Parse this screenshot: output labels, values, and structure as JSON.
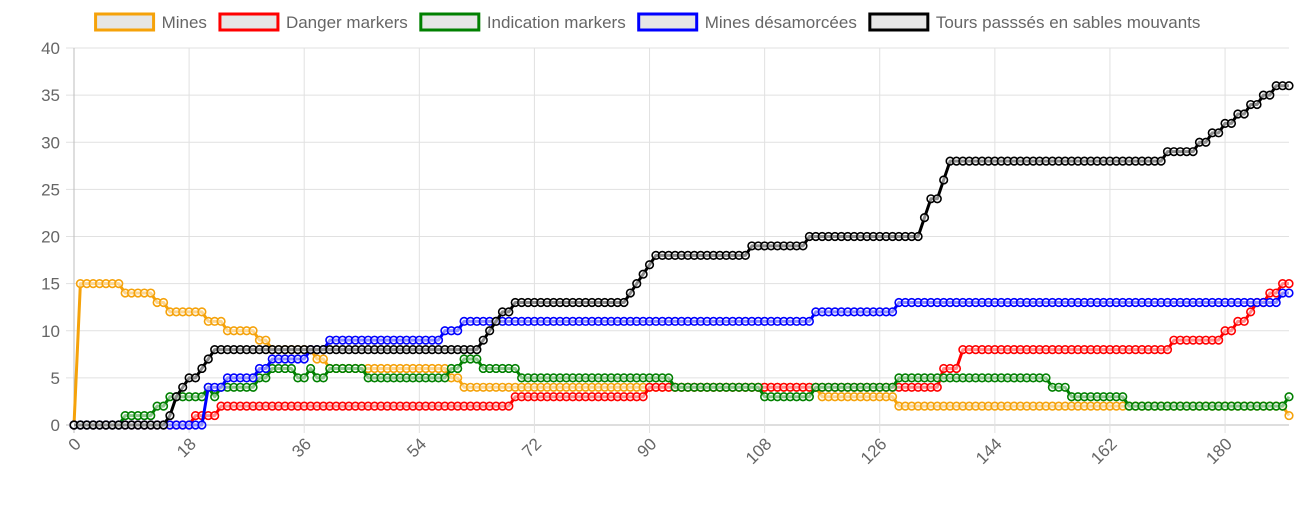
{
  "chart_data": {
    "type": "line",
    "xlabel": "",
    "ylabel": "",
    "x_ticks": [
      0,
      18,
      36,
      54,
      72,
      90,
      108,
      126,
      144,
      162,
      180
    ],
    "y_ticks": [
      0,
      5,
      10,
      15,
      20,
      25,
      30,
      35,
      40
    ],
    "xlim": [
      0,
      190
    ],
    "ylim": [
      0,
      40
    ],
    "grid": true,
    "legend_position": "top",
    "series": [
      {
        "name": "Mines",
        "color": "#f5a20a",
        "steps": [
          [
            0,
            0
          ],
          [
            1,
            15
          ],
          [
            8,
            14
          ],
          [
            13,
            13
          ],
          [
            15,
            12
          ],
          [
            21,
            11
          ],
          [
            24,
            10
          ],
          [
            29,
            9
          ],
          [
            31,
            8
          ],
          [
            38,
            7
          ],
          [
            40,
            6
          ],
          [
            59,
            5
          ],
          [
            61,
            4
          ],
          [
            117,
            3
          ],
          [
            129,
            2
          ],
          [
            190,
            1
          ]
        ]
      },
      {
        "name": "Danger markers",
        "color": "#ff0000",
        "steps": [
          [
            0,
            0
          ],
          [
            19,
            1
          ],
          [
            23,
            2
          ],
          [
            69,
            3
          ],
          [
            90,
            4
          ],
          [
            136,
            6
          ],
          [
            139,
            8
          ],
          [
            172,
            9
          ],
          [
            180,
            10
          ],
          [
            182,
            11
          ],
          [
            184,
            12
          ],
          [
            185,
            13
          ],
          [
            187,
            14
          ],
          [
            189,
            15
          ]
        ]
      },
      {
        "name": "Indication markers",
        "color": "#008000",
        "steps": [
          [
            0,
            0
          ],
          [
            8,
            1
          ],
          [
            13,
            2
          ],
          [
            15,
            3
          ],
          [
            21,
            4
          ],
          [
            22,
            3
          ],
          [
            23,
            4
          ],
          [
            29,
            5
          ],
          [
            31,
            6
          ],
          [
            35,
            5
          ],
          [
            37,
            6
          ],
          [
            38,
            5
          ],
          [
            40,
            6
          ],
          [
            46,
            5
          ],
          [
            59,
            6
          ],
          [
            61,
            7
          ],
          [
            64,
            6
          ],
          [
            70,
            5
          ],
          [
            94,
            4
          ],
          [
            108,
            3
          ],
          [
            116,
            4
          ],
          [
            129,
            5
          ],
          [
            153,
            4
          ],
          [
            156,
            3
          ],
          [
            165,
            2
          ],
          [
            190,
            3
          ]
        ]
      },
      {
        "name": "Mines désamorcées",
        "color": "#0000ff",
        "steps": [
          [
            0,
            0
          ],
          [
            21,
            4
          ],
          [
            24,
            5
          ],
          [
            29,
            6
          ],
          [
            31,
            7
          ],
          [
            37,
            8
          ],
          [
            40,
            9
          ],
          [
            58,
            10
          ],
          [
            61,
            11
          ],
          [
            116,
            12
          ],
          [
            129,
            13
          ],
          [
            189,
            14
          ]
        ]
      },
      {
        "name": "Tours passsés en sables mouvants",
        "color": "#000000",
        "steps": [
          [
            0,
            0
          ],
          [
            15,
            1
          ],
          [
            16,
            3
          ],
          [
            17,
            4
          ],
          [
            18,
            5
          ],
          [
            20,
            6
          ],
          [
            21,
            7
          ],
          [
            22,
            8
          ],
          [
            37,
            8
          ],
          [
            64,
            9
          ],
          [
            65,
            10
          ],
          [
            66,
            11
          ],
          [
            67,
            12
          ],
          [
            69,
            13
          ],
          [
            87,
            14
          ],
          [
            88,
            15
          ],
          [
            89,
            16
          ],
          [
            90,
            17
          ],
          [
            91,
            18
          ],
          [
            106,
            19
          ],
          [
            115,
            20
          ],
          [
            133,
            22
          ],
          [
            134,
            24
          ],
          [
            136,
            26
          ],
          [
            137,
            28
          ],
          [
            171,
            29
          ],
          [
            176,
            30
          ],
          [
            178,
            31
          ],
          [
            180,
            32
          ],
          [
            182,
            33
          ],
          [
            184,
            34
          ],
          [
            186,
            35
          ],
          [
            188,
            36
          ]
        ]
      }
    ]
  }
}
